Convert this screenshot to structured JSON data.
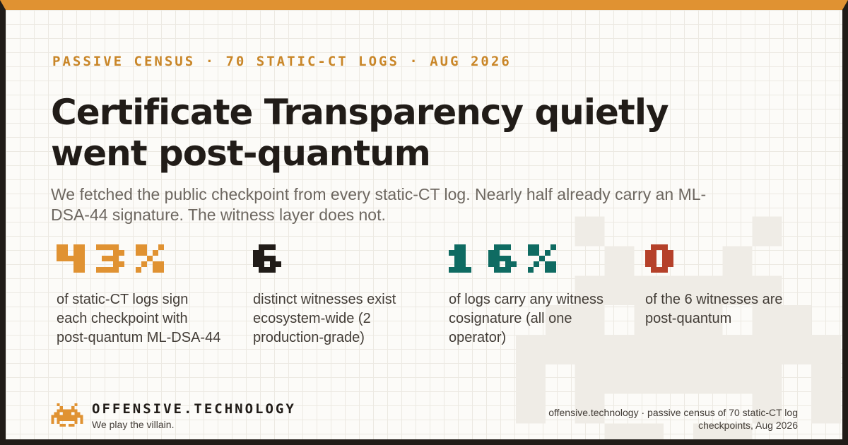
{
  "eyebrow": "PASSIVE CENSUS · 70 STATIC-CT LOGS · AUG 2026",
  "title": "Certificate Transparency quietly went post-quantum",
  "subtitle": "We fetched the public checkpoint from every static-CT log. Nearly half already carry an ML-DSA-44 signature. The witness layer does not.",
  "colors": {
    "accent": "#e09232",
    "ink": "#211c18",
    "teal": "#0f6b62",
    "red": "#b5412a",
    "paper": "#fcfbf8"
  },
  "stats": [
    {
      "value": "43%",
      "description": "of static-CT logs sign each checkpoint with post-quantum ML-DSA-44",
      "color": "#e09232"
    },
    {
      "value": "6",
      "description": "distinct witnesses exist ecosystem-wide (2 production-grade)",
      "color": "#211c18"
    },
    {
      "value": "16%",
      "description": "of logs carry any witness cosignature (all one operator)",
      "color": "#0f6b62"
    },
    {
      "value": "0",
      "description": "of the 6 witnesses are post-quantum",
      "color": "#b5412a"
    }
  ],
  "brand": {
    "icon": "space-invader-icon",
    "name": "OFFENSIVE.TECHNOLOGY",
    "tagline": "We play the villain."
  },
  "credit": "offensive.technology · passive census of 70 static-CT log checkpoints, Aug 2026"
}
